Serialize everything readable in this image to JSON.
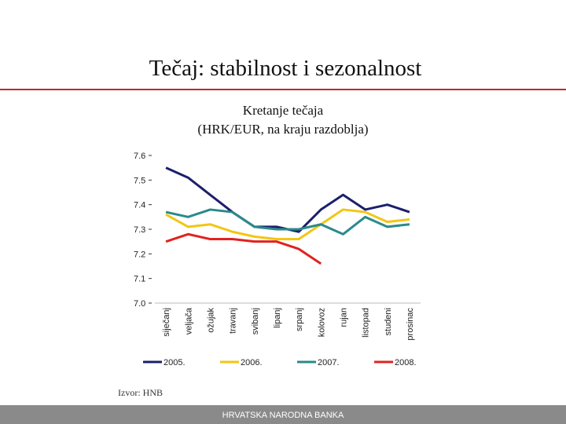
{
  "title": "Tečaj: stabilnost i sezonalnost",
  "source": "Izvor: HNB",
  "footer": "HRVATSKA NARODNA BANKA",
  "chart_data": {
    "type": "line",
    "title": "Kretanje tečaja",
    "subtitle": "(HRK/EUR, na kraju razdoblja)",
    "categories": [
      "siječanj",
      "veljača",
      "ožujak",
      "travanj",
      "svibanj",
      "lipanj",
      "srpanj",
      "kolovoz",
      "rujan",
      "listopad",
      "studeni",
      "prosinac"
    ],
    "series": [
      {
        "name": "2005.",
        "color": "#1c1f6b",
        "values": [
          7.55,
          7.51,
          7.44,
          7.37,
          7.31,
          7.31,
          7.29,
          7.38,
          7.44,
          7.38,
          7.4,
          7.37
        ]
      },
      {
        "name": "2006.",
        "color": "#f2c614",
        "values": [
          7.36,
          7.31,
          7.32,
          7.29,
          7.27,
          7.26,
          7.26,
          7.32,
          7.38,
          7.37,
          7.33,
          7.34
        ]
      },
      {
        "name": "2007.",
        "color": "#2a8a8a",
        "values": [
          7.37,
          7.35,
          7.38,
          7.37,
          7.31,
          7.3,
          7.3,
          7.32,
          7.28,
          7.35,
          7.31,
          7.32
        ]
      },
      {
        "name": "2008.",
        "color": "#e0231f",
        "values": [
          7.25,
          7.28,
          7.26,
          7.26,
          7.25,
          7.25,
          7.22,
          7.16,
          null,
          null,
          null,
          null
        ]
      }
    ],
    "ylim": [
      7.0,
      7.6
    ],
    "yticks": [
      7.6,
      7.5,
      7.4,
      7.3,
      7.2,
      7.1,
      {
        "value": 7,
        "label": "7.0"
      }
    ],
    "grid": false
  }
}
